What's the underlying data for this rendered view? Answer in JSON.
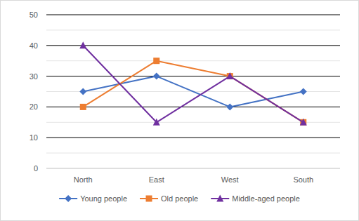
{
  "chart_data": {
    "type": "line",
    "categories": [
      "North",
      "East",
      "West",
      "South"
    ],
    "series": [
      {
        "name": "Young people",
        "color": "#4472c4",
        "marker": "diamond",
        "values": [
          25,
          30,
          20,
          25
        ]
      },
      {
        "name": "Old people",
        "color": "#ed7d31",
        "marker": "square",
        "values": [
          20,
          35,
          30,
          15
        ]
      },
      {
        "name": "Middle-aged people",
        "color": "#7030a0",
        "marker": "triangle",
        "values": [
          40,
          15,
          30,
          15
        ]
      }
    ],
    "ylim": [
      0,
      50
    ],
    "yticks": [
      0,
      10,
      20,
      30,
      40,
      50
    ],
    "grid": true,
    "legend": "bottom"
  }
}
